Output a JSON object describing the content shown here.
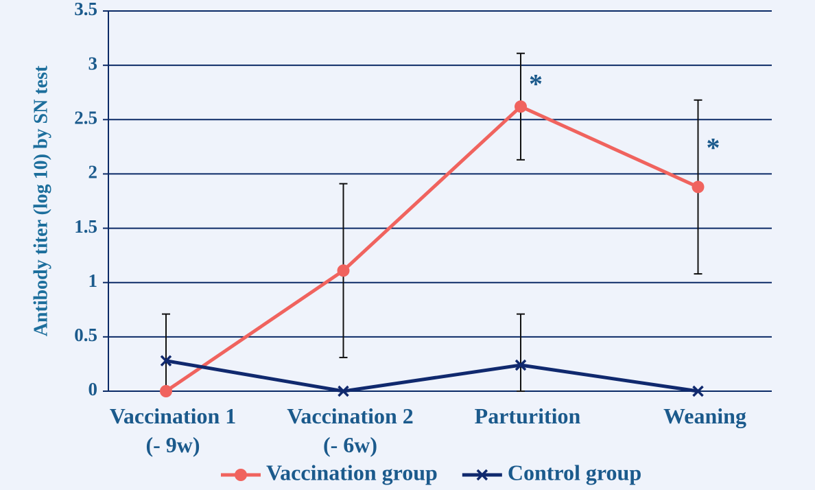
{
  "chart_data": {
    "type": "line",
    "y_label": "Antibody titer (log 10) by SN test",
    "categories": [
      "Vaccination 1\n(- 9w)",
      "Vaccination 2\n(- 6w)",
      "Parturition",
      "Weaning"
    ],
    "series": [
      {
        "name": "Vaccination group",
        "color": "#f0635e",
        "marker": "circle",
        "values": [
          0,
          1.11,
          2.62,
          1.88
        ],
        "errors": [
          null,
          0.8,
          0.49,
          0.8
        ]
      },
      {
        "name": "Control group",
        "color": "#10296e",
        "marker": "x",
        "values": [
          0.28,
          0,
          0.24,
          0
        ],
        "errors": [
          0.43,
          null,
          0.47,
          null
        ]
      }
    ],
    "annotations": [
      {
        "text": "*",
        "category": 2
      },
      {
        "text": "*",
        "category": 3
      }
    ],
    "ylim": [
      0,
      3.5
    ],
    "yticks": [
      0,
      0.5,
      1,
      1.5,
      2,
      2.5,
      3,
      3.5
    ],
    "grid": true,
    "legend": "bottom"
  }
}
